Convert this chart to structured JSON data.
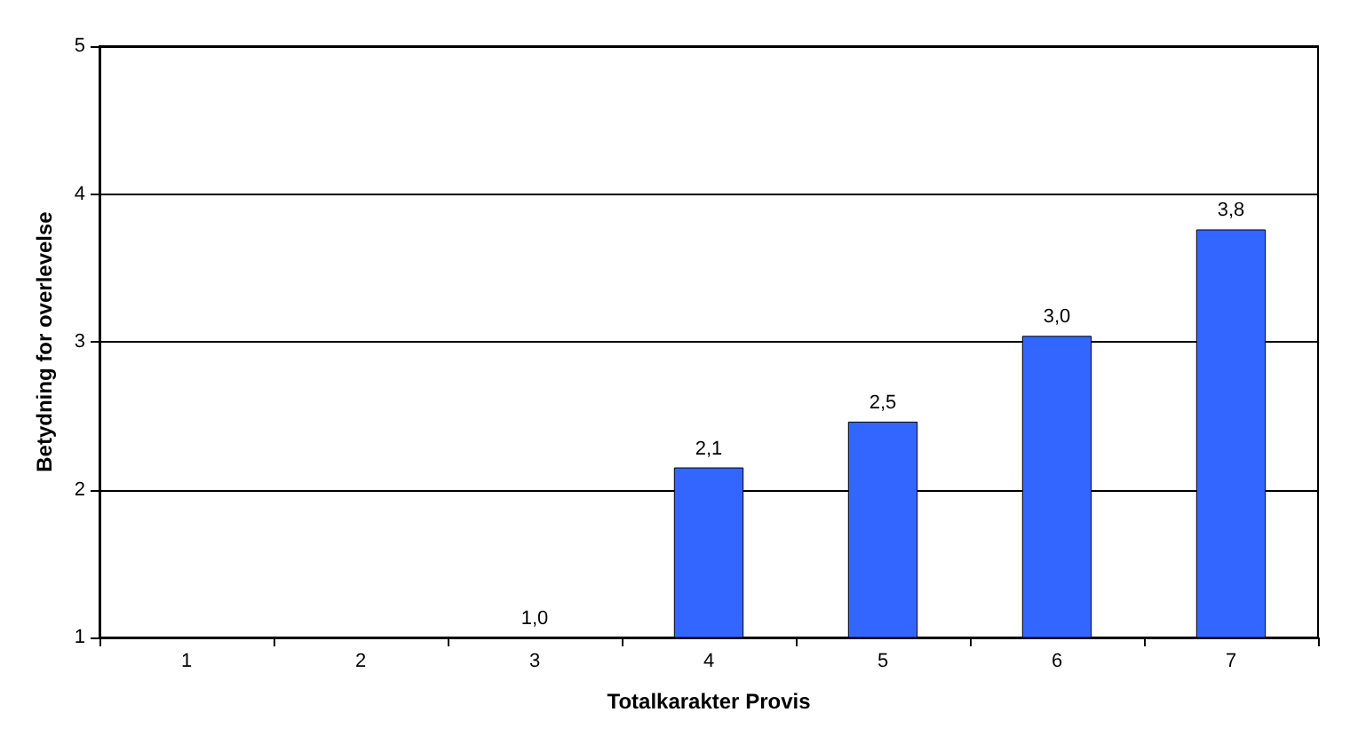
{
  "chart_data": {
    "type": "bar",
    "xlabel": "Totalkarakter Provis",
    "ylabel": "Betydning for overlevelse",
    "categories": [
      "1",
      "2",
      "3",
      "4",
      "5",
      "6",
      "7"
    ],
    "values": [
      null,
      null,
      1.0,
      2.15,
      2.46,
      3.04,
      3.76
    ],
    "value_labels": [
      null,
      null,
      "1,0",
      "2,1",
      "2,5",
      "3,0",
      "3,8"
    ],
    "color": "#3366ff",
    "ylim": [
      1,
      5
    ],
    "yticks": [
      1,
      2,
      3,
      4,
      5
    ],
    "grid": "y"
  }
}
